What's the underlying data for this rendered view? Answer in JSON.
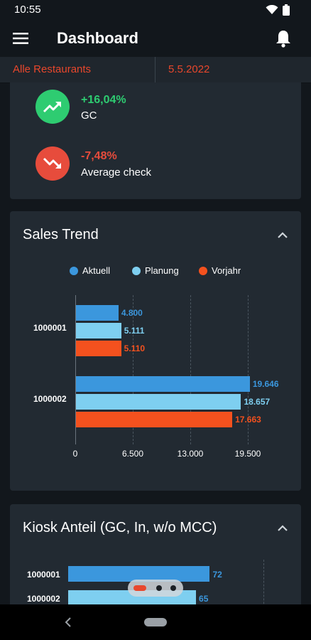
{
  "status_bar": {
    "time": "10:55"
  },
  "header": {
    "title": "Dashboard"
  },
  "filters": {
    "restaurant": "Alle Restaurants",
    "date": "5.5.2022"
  },
  "kpis": [
    {
      "value": "+16,04%",
      "label": "GC",
      "color": "#2ecc71",
      "icon": "trending-up-icon"
    },
    {
      "value": "-7,48%",
      "label": "Average check",
      "color": "#e74c3c",
      "icon": "trending-down-icon"
    }
  ],
  "sales_trend": {
    "title": "Sales Trend",
    "chart_data": {
      "type": "bar",
      "orientation": "horizontal",
      "categories": [
        "1000001",
        "1000002"
      ],
      "series": [
        {
          "name": "Aktuell",
          "color": "#3b97dd",
          "values": [
            4800,
            19646
          ],
          "labels": [
            "4.800",
            "19.646"
          ]
        },
        {
          "name": "Planung",
          "color": "#7ecff0",
          "values": [
            5111,
            18657
          ],
          "labels": [
            "5.111",
            "18.657"
          ]
        },
        {
          "name": "Vorjahr",
          "color": "#f4511e",
          "values": [
            5110,
            17663
          ],
          "labels": [
            "5.110",
            "17.663"
          ]
        }
      ],
      "ticks": [
        0,
        6500,
        13000,
        19500
      ],
      "tick_labels": [
        "0",
        "6.500",
        "13.000",
        "19.500"
      ],
      "xlim": [
        0,
        19500
      ],
      "grid": true,
      "legend_position": "top"
    }
  },
  "kiosk": {
    "title": "Kiosk Anteil (GC, In, w/o MCC)",
    "chart_data": {
      "type": "bar",
      "orientation": "horizontal",
      "categories": [
        "1000001",
        "1000002"
      ],
      "series": [
        {
          "name": "",
          "colors": [
            "#3b97dd",
            "#7ecff0"
          ],
          "values": [
            72,
            65
          ],
          "labels": [
            "72",
            "65"
          ]
        }
      ],
      "xlim": [
        0,
        100
      ]
    }
  },
  "pager": {
    "count": 3,
    "active": 0
  }
}
